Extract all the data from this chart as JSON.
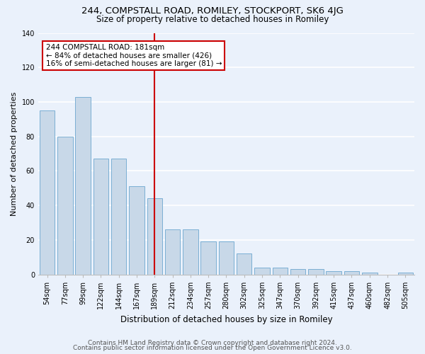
{
  "title": "244, COMPSTALL ROAD, ROMILEY, STOCKPORT, SK6 4JG",
  "subtitle": "Size of property relative to detached houses in Romiley",
  "xlabel": "Distribution of detached houses by size in Romiley",
  "ylabel": "Number of detached properties",
  "categories": [
    "54sqm",
    "77sqm",
    "99sqm",
    "122sqm",
    "144sqm",
    "167sqm",
    "189sqm",
    "212sqm",
    "234sqm",
    "257sqm",
    "280sqm",
    "302sqm",
    "325sqm",
    "347sqm",
    "370sqm",
    "392sqm",
    "415sqm",
    "437sqm",
    "460sqm",
    "482sqm",
    "505sqm"
  ],
  "values": [
    95,
    80,
    103,
    67,
    67,
    51,
    44,
    26,
    26,
    19,
    19,
    12,
    4,
    4,
    3,
    3,
    2,
    2,
    1,
    0,
    1
  ],
  "bar_color": "#c8d8e8",
  "bar_edge_color": "#7bafd4",
  "vline_x_idx": 6,
  "vline_color": "#cc0000",
  "annotation_text": "244 COMPSTALL ROAD: 181sqm\n← 84% of detached houses are smaller (426)\n16% of semi-detached houses are larger (81) →",
  "annotation_box_color": "#ffffff",
  "annotation_box_edge_color": "#cc0000",
  "ylim": [
    0,
    140
  ],
  "yticks": [
    0,
    20,
    40,
    60,
    80,
    100,
    120,
    140
  ],
  "footer1": "Contains HM Land Registry data © Crown copyright and database right 2024.",
  "footer2": "Contains public sector information licensed under the Open Government Licence v3.0.",
  "bg_color": "#eaf1fb",
  "plot_bg_color": "#eaf1fb",
  "grid_color": "#ffffff",
  "title_fontsize": 9.5,
  "subtitle_fontsize": 8.5,
  "xlabel_fontsize": 8.5,
  "ylabel_fontsize": 8,
  "tick_fontsize": 7,
  "annot_fontsize": 7.5,
  "footer_fontsize": 6.5
}
